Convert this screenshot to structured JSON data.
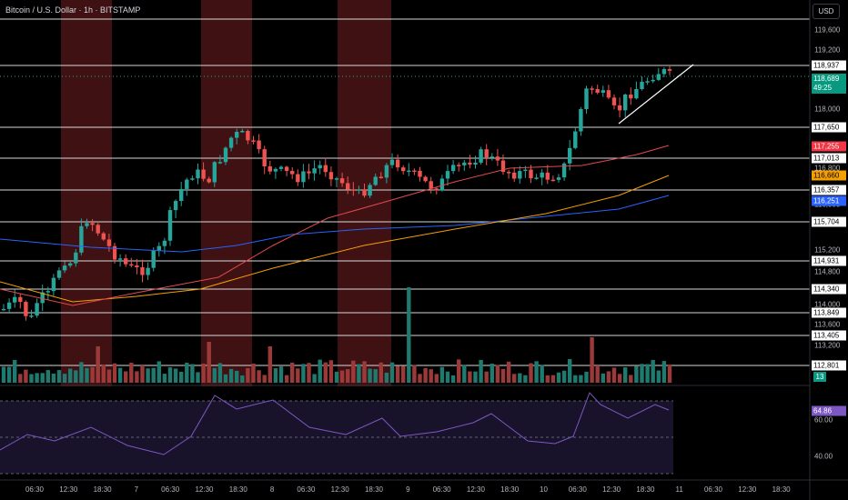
{
  "title": "Bitcoin / U.S. Dollar · 1h · BITSTAMP",
  "currency_button": "USD",
  "colors": {
    "up": "#26a69a",
    "down": "#ef5350",
    "ema_red": "#e24a4f",
    "ema_orange": "#f59f00",
    "ema_blue": "#2962ff",
    "rsi": "#7e57c2",
    "shade": "#4a1416"
  },
  "price_axis": {
    "ticks": [
      "119,600",
      "119,200",
      "118,400",
      "118,000",
      "116,800",
      "116,000",
      "115,200",
      "114,800",
      "114,000",
      "113,600",
      "113,200"
    ],
    "tags": [
      {
        "label": "118,937",
        "style": "white"
      },
      {
        "label": "117,650",
        "style": "white"
      },
      {
        "label": "117,255",
        "style": "red"
      },
      {
        "label": "117,013",
        "style": "white"
      },
      {
        "label": "116,660",
        "style": "orange"
      },
      {
        "label": "116,357",
        "style": "white"
      },
      {
        "label": "116,251",
        "style": "blue"
      },
      {
        "label": "115,704",
        "style": "white"
      },
      {
        "label": "114,931",
        "style": "white"
      },
      {
        "label": "114,340",
        "style": "white"
      },
      {
        "label": "113,849",
        "style": "white"
      },
      {
        "label": "113,405",
        "style": "white"
      },
      {
        "label": "112,801",
        "style": "white"
      }
    ],
    "current_price": "118,689",
    "countdown": "49:25",
    "volume_tag": "13"
  },
  "rsi_axis": {
    "value_tag": "64.86",
    "ticks": [
      "60.00",
      "40.00"
    ]
  },
  "time_axis": [
    "06:30",
    "12:30",
    "18:30",
    "7",
    "06:30",
    "12:30",
    "18:30",
    "8",
    "06:30",
    "12:30",
    "18:30",
    "9",
    "06:30",
    "12:30",
    "18:30",
    "10",
    "06:30",
    "12:30",
    "18:30",
    "11",
    "06:30",
    "12:30",
    "18:30"
  ]
}
